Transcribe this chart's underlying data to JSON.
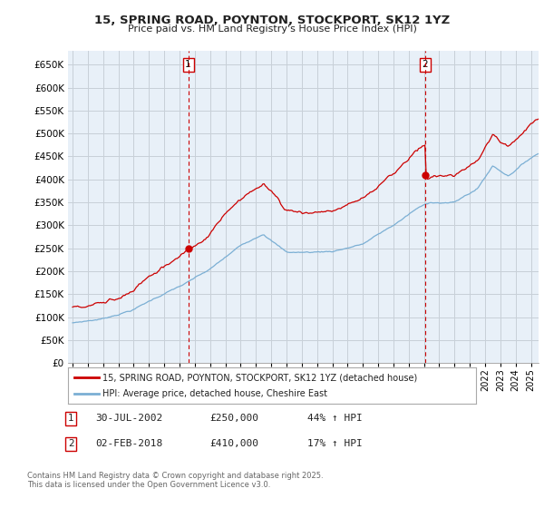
{
  "title": "15, SPRING ROAD, POYNTON, STOCKPORT, SK12 1YZ",
  "subtitle": "Price paid vs. HM Land Registry's House Price Index (HPI)",
  "ylabel_ticks": [
    "£0",
    "£50K",
    "£100K",
    "£150K",
    "£200K",
    "£250K",
    "£300K",
    "£350K",
    "£400K",
    "£450K",
    "£500K",
    "£550K",
    "£600K",
    "£650K"
  ],
  "ytick_vals": [
    0,
    50000,
    100000,
    150000,
    200000,
    250000,
    300000,
    350000,
    400000,
    450000,
    500000,
    550000,
    600000,
    650000
  ],
  "ylim": [
    0,
    680000
  ],
  "xlim_start": 1994.7,
  "xlim_end": 2025.5,
  "purchase1_date": 2002.57,
  "purchase1_price": 250000,
  "purchase2_date": 2018.08,
  "purchase2_price": 410000,
  "line1_color": "#cc0000",
  "line2_color": "#7bafd4",
  "chart_bg": "#e8f0f8",
  "vline_color": "#cc0000",
  "marker_color": "#cc0000",
  "legend_line1": "15, SPRING ROAD, POYNTON, STOCKPORT, SK12 1YZ (detached house)",
  "legend_line2": "HPI: Average price, detached house, Cheshire East",
  "table_row1": [
    "1",
    "30-JUL-2002",
    "£250,000",
    "44% ↑ HPI"
  ],
  "table_row2": [
    "2",
    "02-FEB-2018",
    "£410,000",
    "17% ↑ HPI"
  ],
  "footnote": "Contains HM Land Registry data © Crown copyright and database right 2025.\nThis data is licensed under the Open Government Licence v3.0.",
  "background_color": "#ffffff",
  "grid_color": "#c8d0d8"
}
